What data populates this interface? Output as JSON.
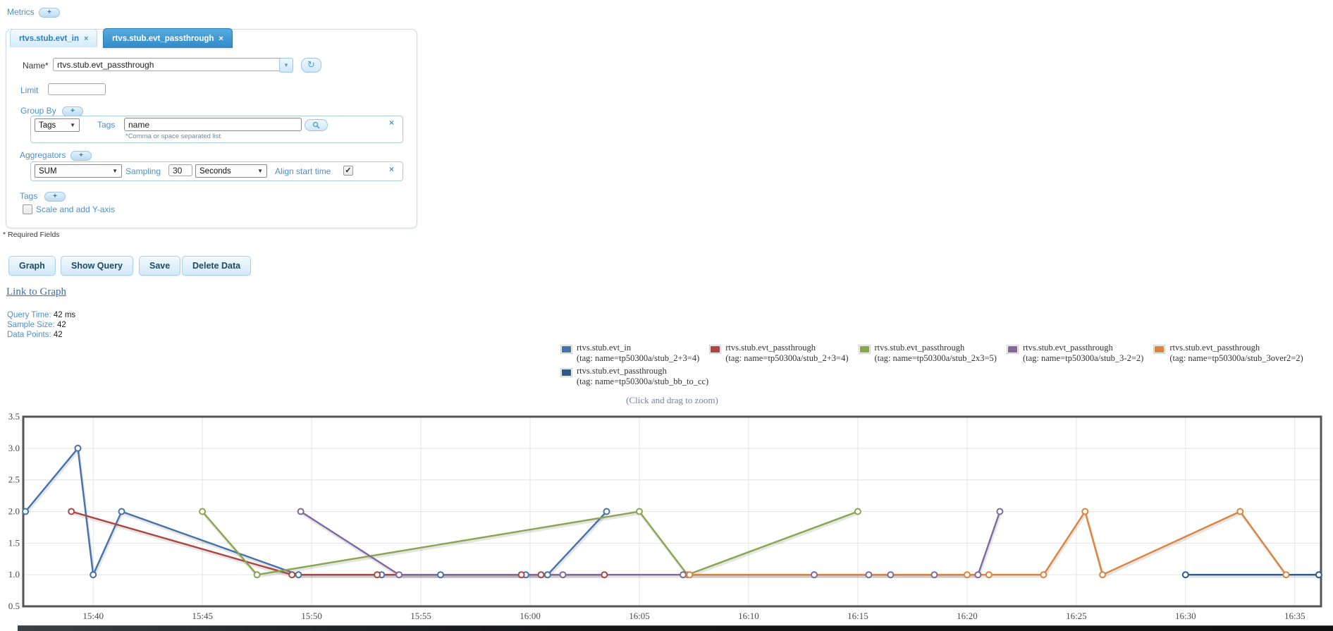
{
  "metrics": {
    "label": "Metrics",
    "add_label": "+"
  },
  "tabs": [
    {
      "label": "rtvs.stub.evt_in",
      "close": "×",
      "active": false
    },
    {
      "label": "rtvs.stub.evt_passthrough",
      "close": "×",
      "active": true
    }
  ],
  "form": {
    "name_label": "Name*",
    "name_value": "rtvs.stub.evt_passthrough",
    "limit_label": "Limit",
    "limit_value": "",
    "group_by": {
      "label": "Group By",
      "add_label": "+",
      "type_value": "Tags",
      "tags_label": "Tags",
      "tags_value": "name",
      "hint": "*Comma or space separated list",
      "close": "×"
    },
    "aggregators": {
      "label": "Aggregators",
      "add_label": "+",
      "agg_value": "SUM",
      "sampling_label": "Sampling",
      "sampling_value": "30",
      "unit_value": "Seconds",
      "align_label": "Align start time",
      "align_checked": true,
      "close": "×"
    },
    "tags": {
      "label": "Tags",
      "add_label": "+",
      "scale_label": "Scale and add Y-axis",
      "scale_checked": false
    },
    "required_note": "* Required Fields"
  },
  "actions": [
    {
      "label": "Graph"
    },
    {
      "label": "Show Query"
    },
    {
      "label": "Save"
    },
    {
      "label": "Delete Data"
    }
  ],
  "link_to_graph": "Link to Graph",
  "stats": [
    {
      "label": "Query Time:",
      "value": "42 ms"
    },
    {
      "label": "Sample Size:",
      "value": "42"
    },
    {
      "label": "Data Points:",
      "value": "42"
    }
  ],
  "zoom_hint": "(Click and drag to zoom)",
  "chart_data": {
    "type": "line",
    "title": "",
    "xlabel": "",
    "ylabel": "",
    "x_unit": "minutes after 15:00",
    "x_domain": [
      36.8,
      96.2
    ],
    "ylim": [
      0.5,
      3.5
    ],
    "y_ticks": [
      "0.5",
      "1.0",
      "1.5",
      "2.0",
      "2.5",
      "3.0",
      "3.5"
    ],
    "x_ticks": [
      {
        "t": 40,
        "label": "15:40"
      },
      {
        "t": 45,
        "label": "15:45"
      },
      {
        "t": 50,
        "label": "15:50"
      },
      {
        "t": 55,
        "label": "15:55"
      },
      {
        "t": 60,
        "label": "16:00"
      },
      {
        "t": 65,
        "label": "16:05"
      },
      {
        "t": 70,
        "label": "16:10"
      },
      {
        "t": 75,
        "label": "16:15"
      },
      {
        "t": 80,
        "label": "16:20"
      },
      {
        "t": 85,
        "label": "16:25"
      },
      {
        "t": 90,
        "label": "16:30"
      },
      {
        "t": 95,
        "label": "16:35"
      }
    ],
    "grid": true,
    "legend_position": "top-right",
    "marker": "open-circle",
    "series": [
      {
        "name": "rtvs.stub.evt_in",
        "tag": "(tag: name=tp50300a/stub_2+3=4)",
        "color": "#4572a7",
        "points": [
          [
            36.9,
            2
          ],
          [
            39.3,
            3
          ],
          [
            40,
            1
          ],
          [
            41.3,
            2
          ],
          [
            49.4,
            1
          ],
          [
            53.2,
            1
          ],
          [
            55.9,
            1
          ],
          [
            59.8,
            1
          ],
          [
            60.8,
            1
          ],
          [
            63.5,
            2
          ]
        ]
      },
      {
        "name": "rtvs.stub.evt_passthrough",
        "tag": "(tag: name=tp50300a/stub_2+3=4)",
        "color": "#aa4643",
        "points": [
          [
            39,
            2
          ],
          [
            49.1,
            1
          ],
          [
            53,
            1
          ],
          [
            59.6,
            1
          ],
          [
            60.5,
            1
          ],
          [
            63.4,
            1
          ]
        ]
      },
      {
        "name": "rtvs.stub.evt_passthrough",
        "tag": "(tag: name=tp50300a/stub_2x3=5)",
        "color": "#89a54e",
        "points": [
          [
            45,
            2
          ],
          [
            47.5,
            1
          ],
          [
            65,
            2
          ],
          [
            67.2,
            1
          ],
          [
            75,
            2
          ]
        ]
      },
      {
        "name": "rtvs.stub.evt_passthrough",
        "tag": "(tag: name=tp50300a/stub_3-2=2)",
        "color": "#80699b",
        "points": [
          [
            49.5,
            2
          ],
          [
            54,
            1
          ],
          [
            61.5,
            1
          ],
          [
            67,
            1
          ],
          [
            73,
            1
          ],
          [
            75.5,
            1
          ],
          [
            76.5,
            1
          ],
          [
            78.5,
            1
          ],
          [
            80.5,
            1
          ],
          [
            81.5,
            2
          ]
        ]
      },
      {
        "name": "rtvs.stub.evt_passthrough",
        "tag": "(tag: name=tp50300a/stub_3over2=2)",
        "color": "#db843d",
        "points": [
          [
            67.3,
            1
          ],
          [
            80,
            1
          ],
          [
            81,
            1
          ],
          [
            83.5,
            1
          ],
          [
            85.4,
            2
          ],
          [
            86.2,
            1
          ],
          [
            92.5,
            2
          ],
          [
            94.6,
            1
          ]
        ]
      },
      {
        "name": "rtvs.stub.evt_passthrough",
        "tag": "(tag: name=tp50300a/stub_bb_to_cc)",
        "color": "#30588c",
        "points": [
          [
            90,
            1
          ],
          [
            96.1,
            1
          ]
        ]
      }
    ]
  }
}
